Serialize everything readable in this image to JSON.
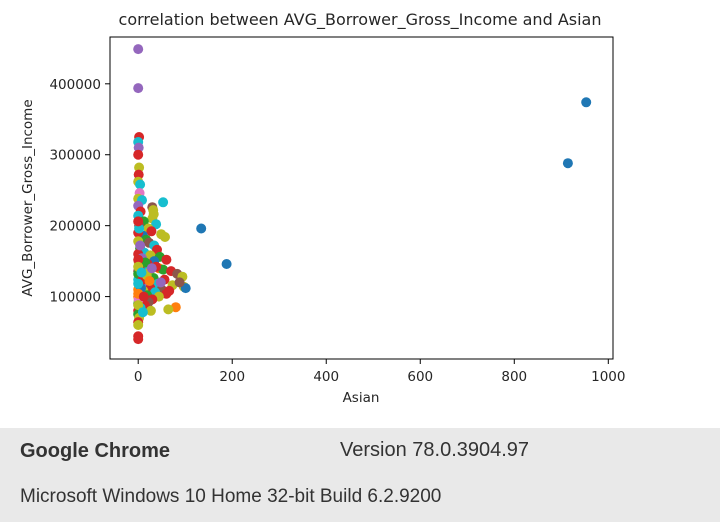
{
  "chart_data": {
    "type": "scatter",
    "title": "correlation between AVG_Borrower_Gross_Income and Asian",
    "xlabel": "Asian",
    "ylabel": "AVG_Borrower_Gross_Income",
    "xlim": [
      -60,
      1010
    ],
    "ylim": [
      12000,
      466000
    ],
    "xticks": [
      0,
      200,
      400,
      600,
      800,
      1000
    ],
    "yticks": [
      100000,
      200000,
      300000,
      400000
    ],
    "grid": false,
    "legend": "none",
    "colors": [
      "#1f77b4",
      "#ff7f0e",
      "#2ca02c",
      "#d62728",
      "#9467bd",
      "#8c564b",
      "#e377c2",
      "#7f7f7f",
      "#bcbd22",
      "#17becf"
    ],
    "points": [
      {
        "x": 953,
        "y": 374000,
        "c": 0
      },
      {
        "x": 914,
        "y": 288000,
        "c": 0
      },
      {
        "x": 134,
        "y": 196000,
        "c": 0
      },
      {
        "x": 188,
        "y": 146000,
        "c": 0
      },
      {
        "x": 0,
        "y": 449000,
        "c": 4
      },
      {
        "x": 0,
        "y": 394000,
        "c": 4
      },
      {
        "x": 2,
        "y": 325000,
        "c": 3
      },
      {
        "x": 0,
        "y": 318000,
        "c": 9
      },
      {
        "x": 1,
        "y": 310000,
        "c": 4
      },
      {
        "x": 0,
        "y": 300000,
        "c": 3
      },
      {
        "x": 2,
        "y": 282000,
        "c": 8
      },
      {
        "x": 1,
        "y": 272000,
        "c": 3
      },
      {
        "x": 0,
        "y": 262000,
        "c": 8
      },
      {
        "x": 4,
        "y": 258000,
        "c": 9
      },
      {
        "x": 3,
        "y": 246000,
        "c": 6
      },
      {
        "x": 0,
        "y": 238000,
        "c": 8
      },
      {
        "x": 8,
        "y": 236000,
        "c": 9
      },
      {
        "x": 53,
        "y": 233000,
        "c": 9
      },
      {
        "x": 30,
        "y": 226000,
        "c": 5
      },
      {
        "x": 32,
        "y": 222000,
        "c": 8
      },
      {
        "x": 33,
        "y": 216000,
        "c": 8
      },
      {
        "x": 30,
        "y": 210000,
        "c": 8
      },
      {
        "x": 0,
        "y": 228000,
        "c": 4
      },
      {
        "x": 5,
        "y": 220000,
        "c": 3
      },
      {
        "x": 0,
        "y": 214000,
        "c": 9
      },
      {
        "x": 12,
        "y": 206000,
        "c": 2
      },
      {
        "x": 38,
        "y": 202000,
        "c": 9
      },
      {
        "x": 2,
        "y": 200000,
        "c": 5
      },
      {
        "x": 22,
        "y": 196000,
        "c": 8
      },
      {
        "x": 28,
        "y": 192000,
        "c": 3
      },
      {
        "x": 49,
        "y": 188000,
        "c": 8
      },
      {
        "x": 57,
        "y": 184000,
        "c": 8
      },
      {
        "x": 10,
        "y": 186000,
        "c": 0
      },
      {
        "x": 0,
        "y": 190000,
        "c": 3
      },
      {
        "x": 17,
        "y": 180000,
        "c": 2
      },
      {
        "x": 0,
        "y": 178000,
        "c": 8
      },
      {
        "x": 23,
        "y": 176000,
        "c": 5
      },
      {
        "x": 34,
        "y": 172000,
        "c": 9
      },
      {
        "x": 4,
        "y": 168000,
        "c": 2
      },
      {
        "x": 40,
        "y": 166000,
        "c": 3
      },
      {
        "x": 13,
        "y": 162000,
        "c": 9
      },
      {
        "x": 0,
        "y": 160000,
        "c": 3
      },
      {
        "x": 26,
        "y": 158000,
        "c": 8
      },
      {
        "x": 46,
        "y": 156000,
        "c": 2
      },
      {
        "x": 60,
        "y": 152000,
        "c": 3
      },
      {
        "x": 8,
        "y": 154000,
        "c": 4
      },
      {
        "x": 34,
        "y": 150000,
        "c": 0
      },
      {
        "x": 1,
        "y": 148000,
        "c": 8
      },
      {
        "x": 20,
        "y": 146000,
        "c": 3
      },
      {
        "x": 12,
        "y": 143000,
        "c": 9
      },
      {
        "x": 44,
        "y": 140000,
        "c": 1
      },
      {
        "x": 53,
        "y": 138000,
        "c": 2
      },
      {
        "x": 70,
        "y": 136000,
        "c": 3
      },
      {
        "x": 0,
        "y": 136000,
        "c": 5
      },
      {
        "x": 24,
        "y": 134000,
        "c": 8
      },
      {
        "x": 83,
        "y": 132000,
        "c": 5
      },
      {
        "x": 94,
        "y": 128000,
        "c": 8
      },
      {
        "x": 7,
        "y": 130000,
        "c": 3
      },
      {
        "x": 33,
        "y": 126000,
        "c": 2
      },
      {
        "x": 56,
        "y": 124000,
        "c": 3
      },
      {
        "x": 0,
        "y": 124000,
        "c": 9
      },
      {
        "x": 16,
        "y": 120000,
        "c": 4
      },
      {
        "x": 42,
        "y": 118000,
        "c": 9
      },
      {
        "x": 73,
        "y": 116000,
        "c": 8
      },
      {
        "x": 97,
        "y": 114000,
        "c": 8
      },
      {
        "x": 101,
        "y": 112000,
        "c": 0
      },
      {
        "x": 3,
        "y": 116000,
        "c": 2
      },
      {
        "x": 26,
        "y": 112000,
        "c": 3
      },
      {
        "x": 50,
        "y": 110000,
        "c": 5
      },
      {
        "x": 0,
        "y": 110000,
        "c": 1
      },
      {
        "x": 11,
        "y": 108000,
        "c": 8
      },
      {
        "x": 36,
        "y": 106000,
        "c": 9
      },
      {
        "x": 60,
        "y": 104000,
        "c": 3
      },
      {
        "x": 2,
        "y": 104000,
        "c": 3
      },
      {
        "x": 19,
        "y": 102000,
        "c": 2
      },
      {
        "x": 44,
        "y": 100000,
        "c": 8
      },
      {
        "x": 0,
        "y": 100000,
        "c": 1
      },
      {
        "x": 8,
        "y": 98000,
        "c": 9
      },
      {
        "x": 30,
        "y": 96000,
        "c": 3
      },
      {
        "x": 1,
        "y": 94000,
        "c": 8
      },
      {
        "x": 22,
        "y": 92000,
        "c": 5
      },
      {
        "x": 0,
        "y": 90000,
        "c": 2
      },
      {
        "x": 14,
        "y": 88000,
        "c": 3
      },
      {
        "x": 80,
        "y": 85000,
        "c": 1
      },
      {
        "x": 64,
        "y": 82000,
        "c": 8
      },
      {
        "x": 5,
        "y": 84000,
        "c": 9
      },
      {
        "x": 0,
        "y": 80000,
        "c": 3
      },
      {
        "x": 27,
        "y": 80000,
        "c": 8
      },
      {
        "x": 0,
        "y": 75000,
        "c": 2
      },
      {
        "x": 2,
        "y": 70000,
        "c": 8
      },
      {
        "x": 0,
        "y": 64000,
        "c": 3
      },
      {
        "x": 0,
        "y": 60000,
        "c": 8
      },
      {
        "x": 0,
        "y": 44000,
        "c": 3
      },
      {
        "x": 0,
        "y": 40000,
        "c": 3
      },
      {
        "x": 3,
        "y": 140000,
        "c": 3
      },
      {
        "x": 0,
        "y": 132000,
        "c": 2
      },
      {
        "x": 6,
        "y": 112000,
        "c": 0
      },
      {
        "x": 1,
        "y": 96000,
        "c": 6
      },
      {
        "x": 0,
        "y": 104000,
        "c": 1
      },
      {
        "x": 9,
        "y": 124000,
        "c": 3
      },
      {
        "x": 15,
        "y": 148000,
        "c": 2
      },
      {
        "x": 4,
        "y": 172000,
        "c": 4
      },
      {
        "x": 18,
        "y": 130000,
        "c": 8
      },
      {
        "x": 38,
        "y": 142000,
        "c": 3
      },
      {
        "x": 48,
        "y": 120000,
        "c": 4
      },
      {
        "x": 66,
        "y": 108000,
        "c": 3
      },
      {
        "x": 88,
        "y": 120000,
        "c": 5
      },
      {
        "x": 12,
        "y": 100000,
        "c": 3
      },
      {
        "x": 0,
        "y": 118000,
        "c": 9
      },
      {
        "x": 0,
        "y": 152000,
        "c": 3
      },
      {
        "x": 0,
        "y": 142000,
        "c": 8
      },
      {
        "x": 0,
        "y": 88000,
        "c": 8
      },
      {
        "x": 10,
        "y": 78000,
        "c": 9
      },
      {
        "x": 24,
        "y": 122000,
        "c": 1
      },
      {
        "x": 29,
        "y": 140000,
        "c": 4
      },
      {
        "x": 7,
        "y": 134000,
        "c": 9
      },
      {
        "x": 2,
        "y": 196000,
        "c": 9
      },
      {
        "x": 0,
        "y": 206000,
        "c": 3
      }
    ]
  },
  "info": {
    "browser": "Google Chrome",
    "version": "Version 78.0.3904.97",
    "os": "Microsoft Windows 10 Home 32-bit Build 6.2.9200"
  }
}
